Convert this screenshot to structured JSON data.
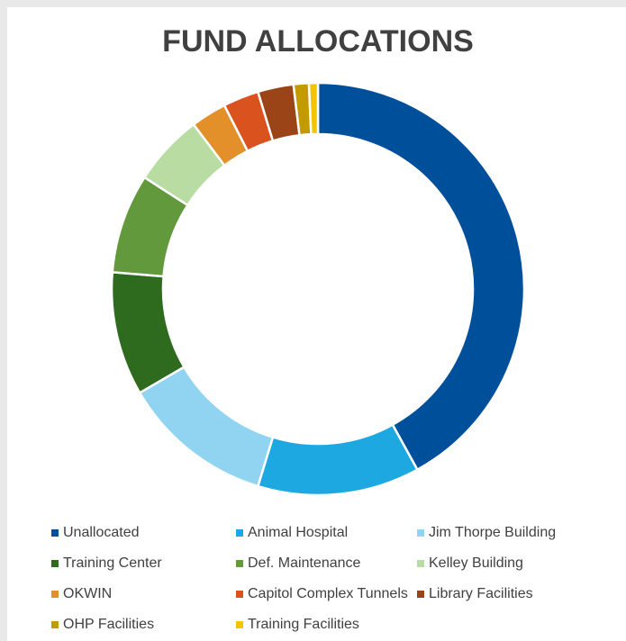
{
  "chart_data": {
    "type": "donut",
    "title": "FUND ALLOCATIONS",
    "categories": [
      "Unallocated",
      "Animal Hospital",
      "Jim Thorpe Building",
      "Training Center",
      "Def. Maintenance",
      "Kelley Building",
      "OKWIN",
      "Capitol Complex Tunnels",
      "Library Facilities",
      "OHP Facilities",
      "Training Facilities"
    ],
    "values": [
      42,
      12.7,
      11.9,
      9.7,
      7.8,
      5.6,
      2.8,
      2.8,
      2.8,
      1.2,
      0.7
    ],
    "colors": [
      "#004f9b",
      "#1ea8e1",
      "#91d4f1",
      "#2f6b1f",
      "#62993c",
      "#b9dca2",
      "#e3902a",
      "#da531f",
      "#9b4417",
      "#c39b00",
      "#f2c500"
    ],
    "legend": "bottom"
  }
}
